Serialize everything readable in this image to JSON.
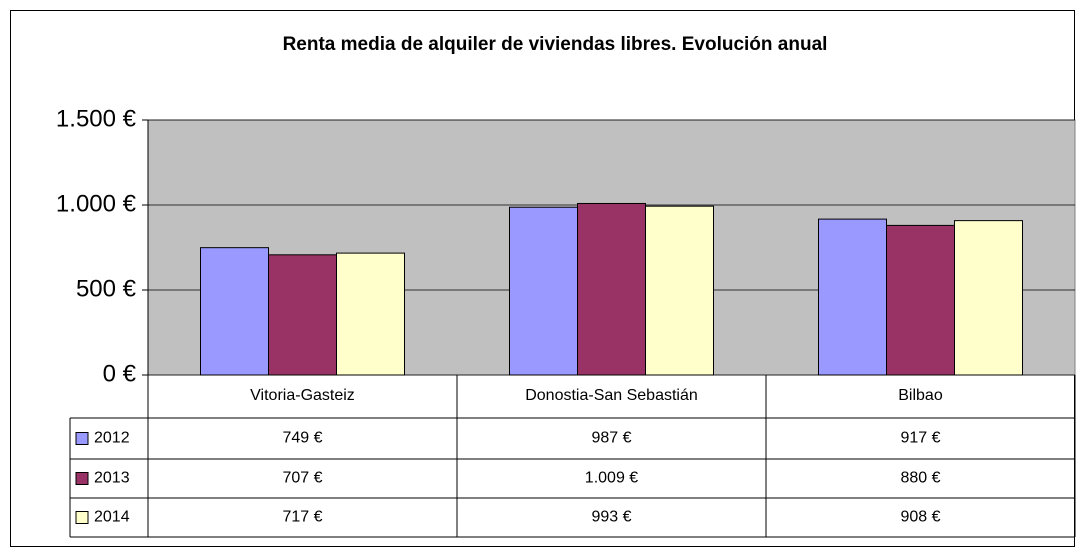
{
  "chart_data": {
    "type": "bar",
    "title": "Renta media de alquiler de viviendas libres. Evolución anual",
    "categories": [
      "Vitoria-Gasteiz",
      "Donostia-San Sebastián",
      "Bilbao"
    ],
    "series": [
      {
        "name": "2012",
        "color": "#9999ff",
        "values": [
          749,
          987,
          917
        ],
        "value_labels": [
          "749 €",
          "987 €",
          "917 €"
        ]
      },
      {
        "name": "2013",
        "color": "#993366",
        "values": [
          707,
          1009,
          880
        ],
        "value_labels": [
          "707 €",
          "1.009 €",
          "880 €"
        ]
      },
      {
        "name": "2014",
        "color": "#ffffcc",
        "values": [
          717,
          993,
          908
        ],
        "value_labels": [
          "717 €",
          "993 €",
          "908 €"
        ]
      }
    ],
    "ylim": [
      0,
      1500
    ],
    "yticks": [
      {
        "value": 0,
        "label": "0 €"
      },
      {
        "value": 500,
        "label": "500 €"
      },
      {
        "value": 1000,
        "label": "1.000 €"
      },
      {
        "value": 1500,
        "label": "1.500 €"
      }
    ],
    "grid": true,
    "plot_background": "#c0c0c0"
  }
}
